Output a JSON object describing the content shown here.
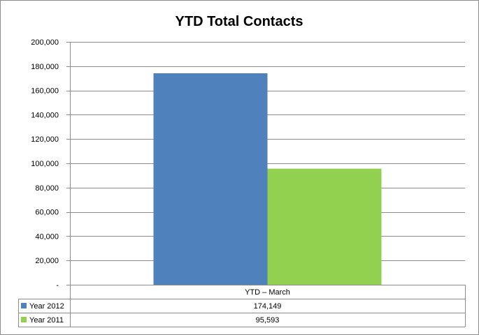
{
  "chart_data": {
    "type": "bar",
    "title": "YTD Total Contacts",
    "categories": [
      "YTD – March"
    ],
    "series": [
      {
        "name": "Year 2012",
        "values": [
          174149
        ],
        "value_labels": [
          "174,149"
        ],
        "color": "#4f81bd"
      },
      {
        "name": "Year 2011",
        "values": [
          95593
        ],
        "value_labels": [
          "95,593"
        ],
        "color": "#92d050"
      }
    ],
    "ylim": [
      0,
      200000
    ],
    "yticks": [
      0,
      20000,
      40000,
      60000,
      80000,
      100000,
      120000,
      140000,
      160000,
      180000,
      200000
    ],
    "ytick_labels": [
      "-",
      "20,000",
      "40,000",
      "60,000",
      "80,000",
      "100,000",
      "120,000",
      "140,000",
      "160,000",
      "180,000",
      "200,000"
    ],
    "grid": true,
    "legend": "data-table-below"
  }
}
